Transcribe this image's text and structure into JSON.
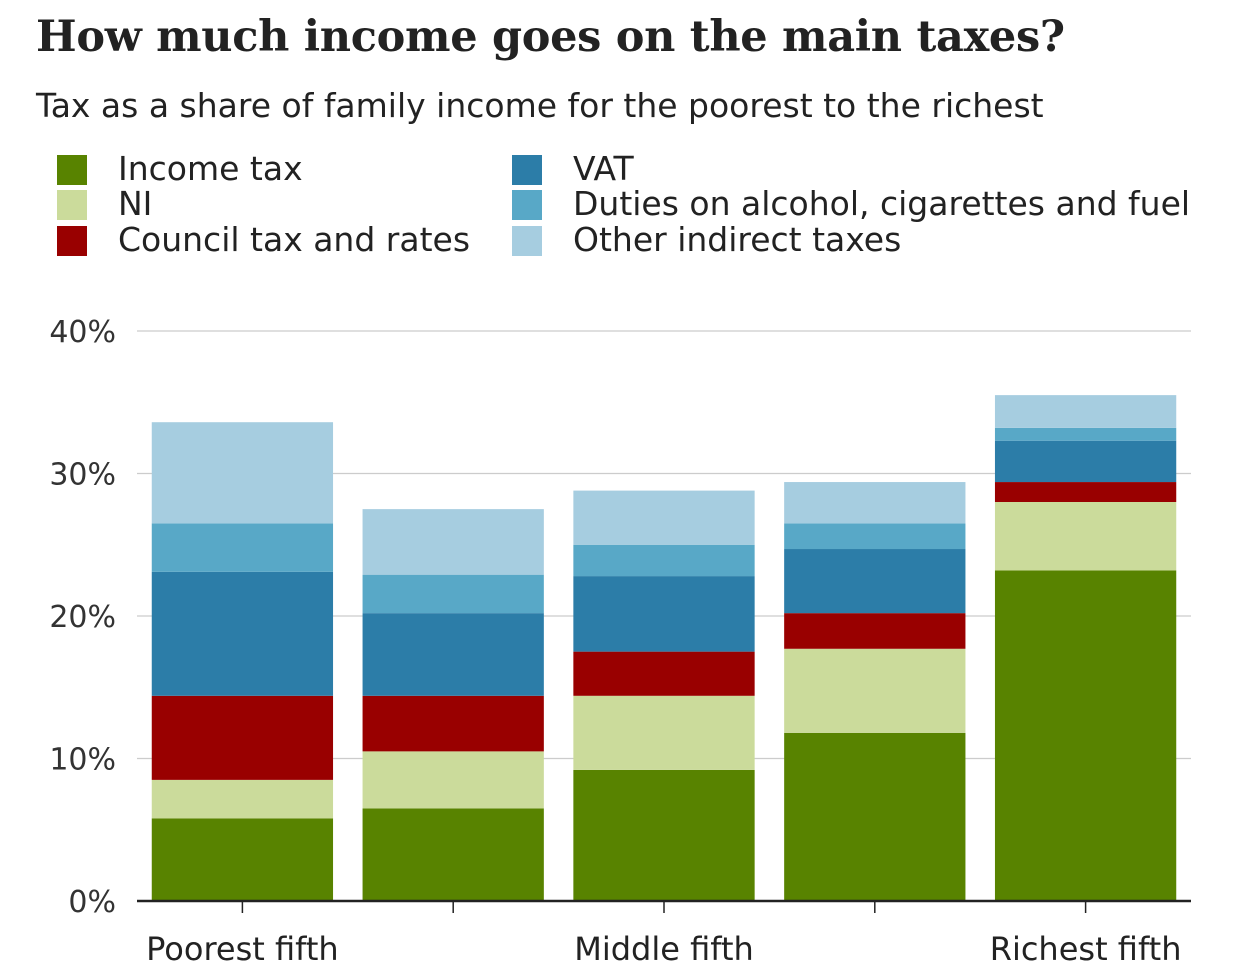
{
  "chart_data": {
    "type": "bar",
    "stacked": true,
    "title": "How much income goes on the main taxes?",
    "subtitle": "Tax as a share of family income for the poorest to the richest",
    "xlabel": "",
    "ylabel": "",
    "ylim": [
      0,
      40
    ],
    "yticks": [
      0,
      10,
      20,
      30,
      40
    ],
    "ytick_labels": [
      "0%",
      "10%",
      "20%",
      "30%",
      "40%"
    ],
    "grid": "horizontal",
    "legend_placement": "top",
    "categories": [
      "Poorest fifth",
      "",
      "Middle fifth",
      "",
      "Richest fifth"
    ],
    "series": [
      {
        "name": "Income tax",
        "color": "#588300",
        "values": [
          5.8,
          6.5,
          9.2,
          11.8,
          23.2
        ]
      },
      {
        "name": "NI",
        "color": "#cbdb9b",
        "values": [
          2.7,
          4.0,
          5.2,
          5.9,
          4.8
        ]
      },
      {
        "name": "Council tax and rates",
        "color": "#990000",
        "values": [
          5.9,
          3.9,
          3.1,
          2.5,
          1.4
        ]
      },
      {
        "name": "VAT",
        "color": "#2c7da8",
        "values": [
          8.7,
          5.8,
          5.3,
          4.5,
          2.9
        ]
      },
      {
        "name": "Duties on alcohol, cigarettes and fuel",
        "color": "#58a8c7",
        "values": [
          3.4,
          2.7,
          2.2,
          1.8,
          0.9
        ]
      },
      {
        "name": "Other indirect taxes",
        "color": "#a6cde0",
        "values": [
          7.1,
          4.6,
          3.8,
          2.9,
          2.3
        ]
      }
    ]
  }
}
